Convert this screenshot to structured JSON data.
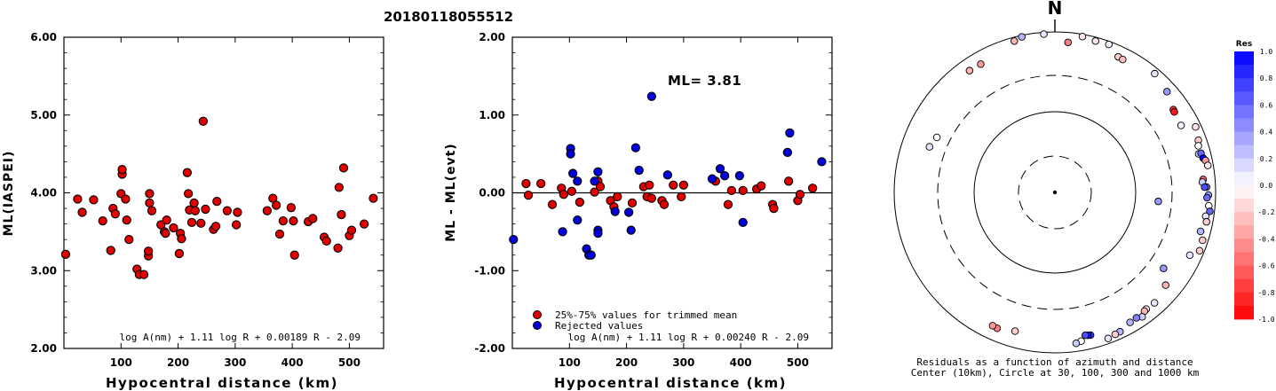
{
  "chart_data": [
    {
      "type": "scatter",
      "title": "20180118055512",
      "xlabel": "Hypocentral distance (km)",
      "ylabel": "ML(IASPEI)",
      "xlim": [
        0,
        560
      ],
      "ylim": [
        2.0,
        6.0
      ],
      "xticks": [
        "100",
        "200",
        "300",
        "400",
        "500"
      ],
      "yticks": [
        "2.00",
        "3.00",
        "4.00",
        "5.00",
        "6.00"
      ],
      "formula": "log A(nm) + 1.11 log R + 0.00189 R - 2.09",
      "marker_color": "#e00000",
      "points": [
        [
          3,
          3.21
        ],
        [
          24,
          3.92
        ],
        [
          32,
          3.75
        ],
        [
          52,
          3.91
        ],
        [
          68,
          3.64
        ],
        [
          82,
          3.26
        ],
        [
          86,
          3.8
        ],
        [
          90,
          3.73
        ],
        [
          100,
          3.99
        ],
        [
          102,
          4.24
        ],
        [
          102,
          4.3
        ],
        [
          108,
          3.92
        ],
        [
          110,
          3.65
        ],
        [
          114,
          3.4
        ],
        [
          128,
          3.02
        ],
        [
          132,
          2.95
        ],
        [
          140,
          2.95
        ],
        [
          148,
          3.19
        ],
        [
          148,
          3.25
        ],
        [
          150,
          3.87
        ],
        [
          150,
          3.99
        ],
        [
          154,
          3.77
        ],
        [
          170,
          3.59
        ],
        [
          176,
          3.5
        ],
        [
          178,
          3.48
        ],
        [
          180,
          3.65
        ],
        [
          192,
          3.55
        ],
        [
          202,
          3.22
        ],
        [
          204,
          3.48
        ],
        [
          206,
          3.41
        ],
        [
          216,
          4.26
        ],
        [
          218,
          3.99
        ],
        [
          220,
          3.78
        ],
        [
          224,
          3.62
        ],
        [
          228,
          3.87
        ],
        [
          230,
          3.77
        ],
        [
          240,
          3.61
        ],
        [
          244,
          4.92
        ],
        [
          248,
          3.79
        ],
        [
          262,
          3.53
        ],
        [
          266,
          3.57
        ],
        [
          268,
          3.89
        ],
        [
          286,
          3.77
        ],
        [
          302,
          3.59
        ],
        [
          304,
          3.75
        ],
        [
          356,
          3.77
        ],
        [
          366,
          3.93
        ],
        [
          372,
          3.84
        ],
        [
          378,
          3.47
        ],
        [
          384,
          3.64
        ],
        [
          398,
          3.81
        ],
        [
          402,
          3.64
        ],
        [
          404,
          3.2
        ],
        [
          428,
          3.63
        ],
        [
          436,
          3.67
        ],
        [
          456,
          3.43
        ],
        [
          460,
          3.38
        ],
        [
          480,
          3.29
        ],
        [
          482,
          4.07
        ],
        [
          486,
          3.72
        ],
        [
          490,
          4.32
        ],
        [
          500,
          3.45
        ],
        [
          504,
          3.52
        ],
        [
          526,
          3.6
        ],
        [
          542,
          3.93
        ]
      ]
    },
    {
      "type": "scatter",
      "xlabel": "Hypocentral distance (km)",
      "ylabel": "ML - ML(evt)",
      "xlim": [
        0,
        560
      ],
      "ylim": [
        -2.0,
        2.0
      ],
      "xticks": [
        "100",
        "200",
        "300",
        "400",
        "500"
      ],
      "yticks": [
        "-2.00",
        "-1.00",
        "0.00",
        "1.00",
        "2.00"
      ],
      "annotation": "ML=  3.81",
      "formula": "log A(nm) + 1.11 log R + 0.00240 R - 2.09",
      "legend": {
        "position": "bottom-left",
        "items": [
          {
            "label": "25%-75% values for trimmed mean",
            "color": "#e00000"
          },
          {
            "label": "Rejected values",
            "color": "#0000dd"
          }
        ]
      },
      "series": [
        {
          "name": "25%-75% values for trimmed mean",
          "color": "#e00000",
          "points": [
            [
              24,
              0.12
            ],
            [
              28,
              -0.03
            ],
            [
              50,
              0.12
            ],
            [
              70,
              -0.15
            ],
            [
              86,
              0.06
            ],
            [
              90,
              -0.02
            ],
            [
              104,
              0.02
            ],
            [
              118,
              -0.12
            ],
            [
              144,
              0.01
            ],
            [
              150,
              0.15
            ],
            [
              154,
              0.08
            ],
            [
              172,
              -0.1
            ],
            [
              178,
              -0.18
            ],
            [
              184,
              -0.05
            ],
            [
              210,
              -0.13
            ],
            [
              230,
              0.08
            ],
            [
              236,
              -0.05
            ],
            [
              240,
              0.1
            ],
            [
              244,
              -0.07
            ],
            [
              262,
              -0.1
            ],
            [
              266,
              -0.15
            ],
            [
              282,
              0.1
            ],
            [
              296,
              -0.05
            ],
            [
              300,
              0.1
            ],
            [
              356,
              0.15
            ],
            [
              378,
              -0.15
            ],
            [
              384,
              0.03
            ],
            [
              404,
              0.03
            ],
            [
              428,
              0.05
            ],
            [
              436,
              0.09
            ],
            [
              456,
              -0.15
            ],
            [
              458,
              -0.2
            ],
            [
              484,
              0.15
            ],
            [
              500,
              -0.1
            ],
            [
              504,
              -0.02
            ],
            [
              526,
              0.06
            ]
          ]
        },
        {
          "name": "Rejected values",
          "color": "#0000dd",
          "points": [
            [
              2,
              -0.6
            ],
            [
              88,
              -0.5
            ],
            [
              102,
              0.57
            ],
            [
              102,
              0.5
            ],
            [
              106,
              0.25
            ],
            [
              114,
              0.15
            ],
            [
              114,
              -0.35
            ],
            [
              130,
              -0.72
            ],
            [
              134,
              -0.8
            ],
            [
              138,
              -0.8
            ],
            [
              144,
              0.15
            ],
            [
              150,
              0.27
            ],
            [
              150,
              -0.48
            ],
            [
              150,
              -0.52
            ],
            [
              180,
              -0.24
            ],
            [
              204,
              -0.25
            ],
            [
              208,
              -0.48
            ],
            [
              216,
              0.58
            ],
            [
              222,
              0.29
            ],
            [
              244,
              1.24
            ],
            [
              272,
              0.23
            ],
            [
              350,
              0.18
            ],
            [
              364,
              0.31
            ],
            [
              372,
              0.22
            ],
            [
              398,
              0.22
            ],
            [
              404,
              -0.38
            ],
            [
              482,
              0.52
            ],
            [
              486,
              0.77
            ],
            [
              542,
              0.4
            ]
          ]
        }
      ]
    },
    {
      "type": "polar-scatter",
      "north_label": "N",
      "caption": [
        "Residuals as a function of azimuth and distance",
        "Center (10km), Circle at 30, 100, 300 and 1000 km"
      ],
      "colorbar": {
        "title": "Res",
        "labels": [
          "1.0",
          "0.8",
          "0.6",
          "0.4",
          "0.2",
          "0.0",
          "-0.2",
          "-0.4",
          "-0.6",
          "-0.8",
          "-1.0"
        ],
        "range": [
          -1.0,
          1.0
        ]
      },
      "points": [
        [
          348,
          960,
          0.3
        ],
        [
          356,
          950,
          0.1
        ],
        [
          345,
          900,
          -0.3
        ],
        [
          10,
          940,
          -0.1
        ],
        [
          15,
          900,
          -0.1
        ],
        [
          20,
          920,
          0.05
        ],
        [
          5,
          760,
          -0.5
        ],
        [
          25,
          740,
          -0.2
        ],
        [
          27,
          730,
          -0.25
        ],
        [
          40,
          860,
          0.1
        ],
        [
          48,
          760,
          0.4
        ],
        [
          55,
          640,
          -0.8
        ],
        [
          56,
          630,
          -0.9
        ],
        [
          62,
          610,
          0.05
        ],
        [
          325,
          720,
          -0.3
        ],
        [
          330,
          710,
          -0.4
        ],
        [
          295,
          430,
          0.0
        ],
        [
          290,
          470,
          0.1
        ],
        [
          95,
          200,
          0.4
        ],
        [
          65,
          860,
          -0.1
        ],
        [
          70,
          800,
          -0.2
        ],
        [
          72,
          760,
          0.0
        ],
        [
          75,
          720,
          0.2
        ],
        [
          75,
          770,
          0.6
        ],
        [
          77,
          790,
          1.0
        ],
        [
          78,
          830,
          -0.4
        ],
        [
          80,
          860,
          -0.1
        ],
        [
          85,
          720,
          -0.6
        ],
        [
          86,
          700,
          0.2
        ],
        [
          88,
          780,
          0.5
        ],
        [
          88,
          740,
          0.7
        ],
        [
          91,
          820,
          0.4
        ],
        [
          92,
          790,
          0.6
        ],
        [
          95,
          840,
          0.0
        ],
        [
          97,
          880,
          0.6
        ],
        [
          99,
          800,
          0.1
        ],
        [
          101,
          840,
          -0.2
        ],
        [
          105,
          760,
          0.3
        ],
        [
          108,
          860,
          -0.2
        ],
        [
          112,
          880,
          -0.2
        ],
        [
          115,
          720,
          0.1
        ],
        [
          125,
          460,
          0.4
        ],
        [
          130,
          640,
          -0.3
        ],
        [
          138,
          720,
          0.1
        ],
        [
          142,
          710,
          -0.1
        ],
        [
          143,
          720,
          -0.3
        ],
        [
          145,
          790,
          0.2
        ],
        [
          147,
          740,
          0.5
        ],
        [
          150,
          750,
          0.3
        ],
        [
          155,
          830,
          0.3
        ],
        [
          157,
          840,
          -0.2
        ],
        [
          160,
          870,
          0.1
        ],
        [
          166,
          690,
          0.8
        ],
        [
          167,
          680,
          0.9
        ],
        [
          168,
          670,
          0.7
        ],
        [
          170,
          770,
          0.0
        ],
        [
          172,
          800,
          0.2
        ],
        [
          196,
          640,
          -0.2
        ],
        [
          203,
          700,
          -0.5
        ],
        [
          205,
          690,
          -0.4
        ]
      ]
    }
  ]
}
